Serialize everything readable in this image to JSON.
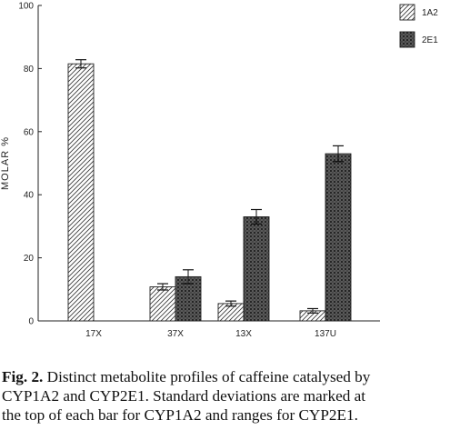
{
  "chart_data": {
    "type": "bar",
    "title": "",
    "xlabel": "",
    "ylabel": "MOLAR %",
    "ylim": [
      0,
      100
    ],
    "yticks": [
      0,
      20,
      40,
      60,
      80,
      100
    ],
    "categories": [
      "17X",
      "37X",
      "13X",
      "137U"
    ],
    "series": [
      {
        "name": "1A2",
        "pattern": "diagonal-hatch",
        "values": [
          81.5,
          10.8,
          5.5,
          3.2
        ],
        "errors": [
          1.3,
          1.0,
          0.8,
          0.7
        ]
      },
      {
        "name": "2E1",
        "pattern": "crosshatch-dark",
        "values": [
          null,
          14.0,
          33.0,
          53.0
        ],
        "errors": [
          null,
          2.2,
          2.3,
          2.5
        ]
      }
    ],
    "grid": false,
    "legend": "top-right"
  },
  "caption": {
    "label": "Fig. 2.",
    "lines": [
      "Distinct metabolite profiles of caffeine catalysed by",
      "CYP1A2 and CYP2E1. Standard deviations are marked at",
      "the top of each bar for CYP1A2 and ranges for CYP2E1."
    ]
  }
}
